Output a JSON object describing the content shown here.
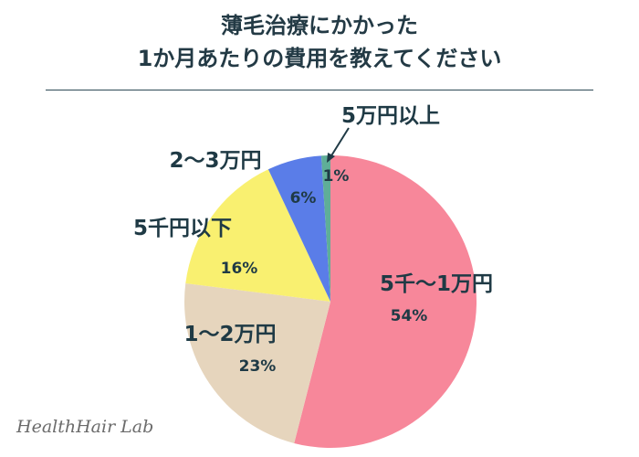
{
  "chart_data": {
    "type": "pie",
    "title_lines": [
      "薄毛治療にかかった",
      "1か月あたりの費用を教えてください"
    ],
    "categories": [
      "5千〜1万円",
      "1〜2万円",
      "5千円以下",
      "2〜3万円",
      "5万円以上"
    ],
    "values": [
      54,
      23,
      16,
      6,
      1
    ],
    "value_labels": [
      "54%",
      "23%",
      "16%",
      "6%",
      "1%"
    ],
    "colors": [
      "#f7879a",
      "#e6d5bd",
      "#f9f070",
      "#5a7de8",
      "#5fae98"
    ],
    "start_angle_deg": 0,
    "direction": "clockwise"
  },
  "watermark": "HealthHair Lab"
}
